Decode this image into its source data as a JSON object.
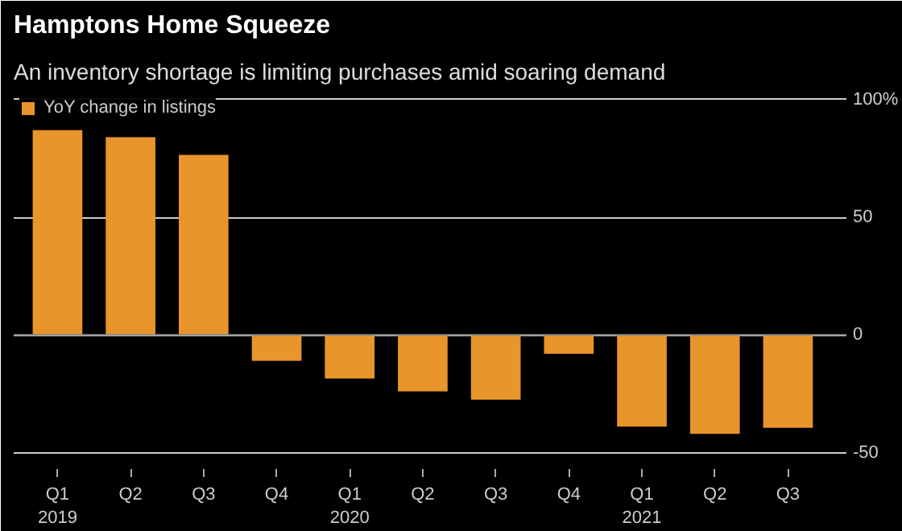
{
  "chart_data": {
    "type": "bar",
    "title": "Hamptons Home Squeeze",
    "subtitle": "An inventory shortage is limiting purchases amid soaring demand",
    "categories": [
      "Q1\n2019",
      "Q2",
      "Q3",
      "Q4",
      "Q1\n2020",
      "Q2",
      "Q3",
      "Q4",
      "Q1\n2021",
      "Q2",
      "Q3"
    ],
    "series": [
      {
        "name": "YoY change in listings",
        "color": "#e8952b",
        "values": [
          87,
          84,
          76.5,
          -11,
          -18.5,
          -24,
          -27.5,
          -8,
          -39,
          -42,
          -39.5
        ]
      }
    ],
    "ylim": [
      -57,
      103
    ],
    "yticks": [
      {
        "value": 100,
        "label": "100%"
      },
      50,
      0,
      -50
    ],
    "grid": "y",
    "legend": "top left"
  }
}
